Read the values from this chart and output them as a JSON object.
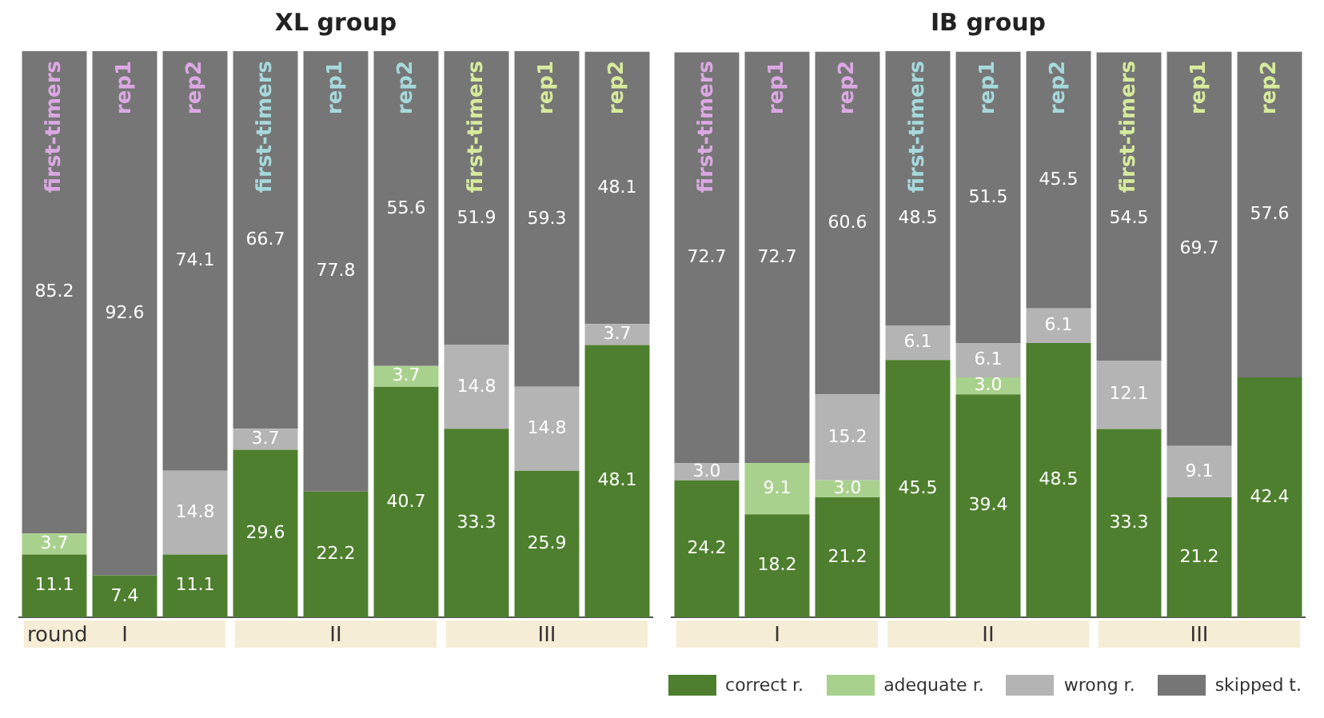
{
  "chart_data": [
    {
      "type": "bar",
      "title": "XL group",
      "stacked": true,
      "data_labels": true,
      "legend": "bottom right",
      "tick_labels": "x",
      "grid": false,
      "categories": [
        "first-timers",
        "rep1",
        "rep2",
        "first-timers",
        "rep1",
        "rep2",
        "first-timers",
        "rep1",
        "rep2"
      ],
      "series": [
        {
          "name": "correct r.",
          "color": "#4e7f2e",
          "values": [
            11.1,
            7.4,
            11.1,
            29.6,
            22.2,
            40.7,
            33.3,
            25.9,
            48.1
          ]
        },
        {
          "name": "adequate r.",
          "color": "#a9d18e",
          "values": [
            3.7,
            null,
            null,
            null,
            null,
            3.7,
            null,
            null,
            null
          ]
        },
        {
          "name": "wrong r.",
          "color": "#b4b4b4",
          "values": [
            null,
            null,
            14.8,
            3.7,
            null,
            null,
            14.8,
            14.8,
            3.7
          ]
        },
        {
          "name": "skipped t.",
          "color": "#767676",
          "values": [
            85.2,
            92.6,
            74.1,
            66.7,
            77.8,
            55.6,
            51.9,
            59.3,
            48.1
          ]
        }
      ],
      "annotations": [
        "round",
        "I",
        "II",
        "III"
      ]
    },
    {
      "type": "bar",
      "title": "IB group",
      "stacked": true,
      "data_labels": true,
      "legend": "bottom right",
      "tick_labels": "x",
      "grid": false,
      "categories": [
        "first-timers",
        "rep1",
        "rep2",
        "first-timers",
        "rep1",
        "rep2",
        "first-timers",
        "rep1",
        "rep2"
      ],
      "series": [
        {
          "name": "correct r.",
          "color": "#4e7f2e",
          "values": [
            24.2,
            18.2,
            21.2,
            45.5,
            39.4,
            48.5,
            33.3,
            21.2,
            42.4
          ]
        },
        {
          "name": "adequate r.",
          "color": "#a9d18e",
          "values": [
            null,
            9.1,
            3.0,
            null,
            3.0,
            null,
            null,
            null,
            null
          ],
          "value_labels": [
            null,
            "9.1",
            "3.0",
            null,
            "3.0",
            null,
            null,
            null,
            null
          ]
        },
        {
          "name": "wrong r.",
          "color": "#b4b4b4",
          "values": [
            3.0,
            null,
            15.2,
            6.1,
            6.1,
            6.1,
            12.1,
            9.1,
            null
          ],
          "value_labels": [
            "3.0",
            null,
            "15.2",
            "6.1",
            "6.1",
            "6.1",
            "12.1",
            "9.1",
            null
          ]
        },
        {
          "name": "skipped t.",
          "color": "#767676",
          "values": [
            72.7,
            72.7,
            60.6,
            48.5,
            51.5,
            45.5,
            54.5,
            69.7,
            57.6
          ]
        }
      ],
      "annotations": [
        "I",
        "II",
        "III"
      ]
    }
  ]
}
